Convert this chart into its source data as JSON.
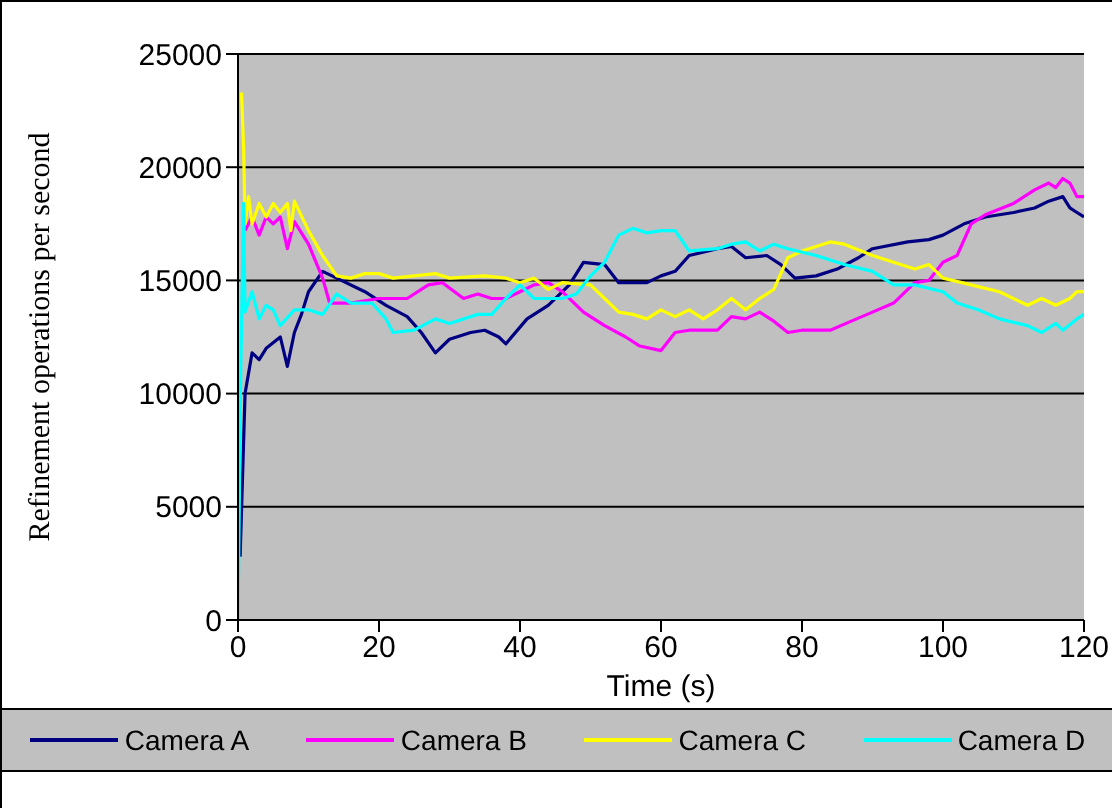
{
  "chart_data": {
    "type": "line",
    "xlabel": "Time (s)",
    "ylabel": "Refinement operations per second",
    "xlim": [
      0,
      120
    ],
    "xticks": [
      0,
      20,
      40,
      60,
      80,
      100,
      120
    ],
    "ylim": [
      0,
      25000
    ],
    "yticks": [
      0,
      5000,
      10000,
      15000,
      20000,
      25000
    ],
    "grid": "y",
    "legend": "bottom",
    "marker": "none",
    "line_style": "solid",
    "series": [
      {
        "name": "Camera A",
        "color": "#000080",
        "x": [
          0.3,
          1,
          2,
          3,
          4,
          6,
          7,
          8,
          9,
          10,
          12,
          14,
          18,
          21,
          24,
          26,
          28,
          30,
          33,
          35,
          37,
          38,
          41,
          44,
          47,
          49,
          52,
          54,
          58,
          60,
          62,
          64,
          68,
          70,
          72,
          75,
          77,
          79,
          82,
          85,
          88,
          90,
          95,
          98,
          100,
          103,
          106,
          110,
          113,
          115,
          117,
          118,
          119,
          120
        ],
        "values": [
          2800,
          10000,
          11800,
          11500,
          12000,
          12500,
          11200,
          12700,
          13500,
          14500,
          15400,
          15100,
          14500,
          13900,
          13400,
          12700,
          11800,
          12400,
          12700,
          12800,
          12500,
          12200,
          13300,
          13900,
          14800,
          15800,
          15700,
          14900,
          14900,
          15200,
          15400,
          16100,
          16400,
          16500,
          16000,
          16100,
          15700,
          15100,
          15200,
          15500,
          16000,
          16400,
          16700,
          16800,
          17000,
          17500,
          17800,
          18000,
          18200,
          18500,
          18700,
          18200,
          18000,
          17800
        ]
      },
      {
        "name": "Camera B",
        "color": "#ff00ff",
        "x": [
          1,
          2,
          3,
          4,
          5,
          6,
          7,
          8,
          10,
          12,
          13,
          16,
          20,
          24,
          27,
          29,
          32,
          34,
          36,
          38,
          40,
          42,
          44,
          46,
          49,
          52,
          55,
          57,
          60,
          62,
          64,
          68,
          70,
          72,
          74,
          76,
          78,
          80,
          84,
          87,
          90,
          93,
          96,
          98,
          100,
          102,
          104,
          106,
          110,
          113,
          115,
          116,
          117,
          118,
          119,
          120
        ],
        "values": [
          17200,
          17800,
          17000,
          17800,
          17500,
          17800,
          16400,
          17600,
          16600,
          15100,
          14000,
          14000,
          14200,
          14200,
          14800,
          14900,
          14200,
          14400,
          14200,
          14200,
          14500,
          14800,
          14900,
          14500,
          13600,
          13000,
          12500,
          12100,
          11900,
          12700,
          12800,
          12800,
          13400,
          13300,
          13600,
          13200,
          12700,
          12800,
          12800,
          13200,
          13600,
          14000,
          14900,
          15000,
          15800,
          16100,
          17500,
          17900,
          18400,
          19000,
          19300,
          19100,
          19500,
          19300,
          18700,
          18700
        ]
      },
      {
        "name": "Camera C",
        "color": "#ffff00",
        "x": [
          0.5,
          0.8,
          1,
          1.5,
          2,
          3,
          4,
          5,
          6,
          7,
          7.5,
          8,
          10,
          12,
          14,
          16,
          18,
          20,
          22,
          28,
          30,
          35,
          38,
          40,
          42,
          44,
          46,
          50,
          52,
          54,
          56,
          58,
          60,
          62,
          64,
          66,
          68,
          70,
          72,
          74,
          76,
          78,
          80,
          84,
          86,
          90,
          94,
          96,
          98,
          100,
          104,
          108,
          112,
          114,
          116,
          118,
          119,
          120
        ],
        "values": [
          23300,
          20800,
          17500,
          18700,
          17500,
          18400,
          17800,
          18400,
          18000,
          18400,
          17200,
          18500,
          17200,
          16100,
          15200,
          15100,
          15300,
          15300,
          15100,
          15300,
          15100,
          15200,
          15100,
          14900,
          15100,
          14600,
          14900,
          14800,
          14200,
          13600,
          13500,
          13300,
          13700,
          13400,
          13700,
          13300,
          13700,
          14200,
          13700,
          14200,
          14600,
          16000,
          16300,
          16700,
          16600,
          16100,
          15700,
          15500,
          15700,
          15100,
          14800,
          14500,
          13900,
          14200,
          13900,
          14200,
          14500,
          14500
        ]
      },
      {
        "name": "Camera D",
        "color": "#00ffff",
        "x": [
          0,
          0.4,
          0.8,
          1,
          2,
          3,
          4,
          5,
          6,
          8,
          10,
          12,
          14,
          16,
          19,
          21,
          22,
          25,
          28,
          30,
          34,
          36,
          38,
          40,
          42,
          46,
          48,
          50,
          52,
          54,
          56,
          58,
          60,
          62,
          64,
          68,
          70,
          72,
          74,
          76,
          78,
          82,
          86,
          90,
          93,
          96,
          100,
          102,
          105,
          108,
          112,
          114,
          116,
          117,
          119,
          120
        ],
        "values": [
          0,
          11200,
          18400,
          13600,
          14500,
          13300,
          13900,
          13700,
          13000,
          13700,
          13700,
          13500,
          14400,
          14000,
          14000,
          13300,
          12700,
          12800,
          13300,
          13100,
          13500,
          13500,
          14200,
          14800,
          14200,
          14200,
          14400,
          15200,
          15800,
          17000,
          17300,
          17100,
          17200,
          17200,
          16300,
          16400,
          16600,
          16700,
          16300,
          16600,
          16400,
          16100,
          15700,
          15400,
          14800,
          14800,
          14500,
          14000,
          13700,
          13300,
          13000,
          12700,
          13100,
          12800,
          13300,
          13500
        ]
      }
    ]
  }
}
